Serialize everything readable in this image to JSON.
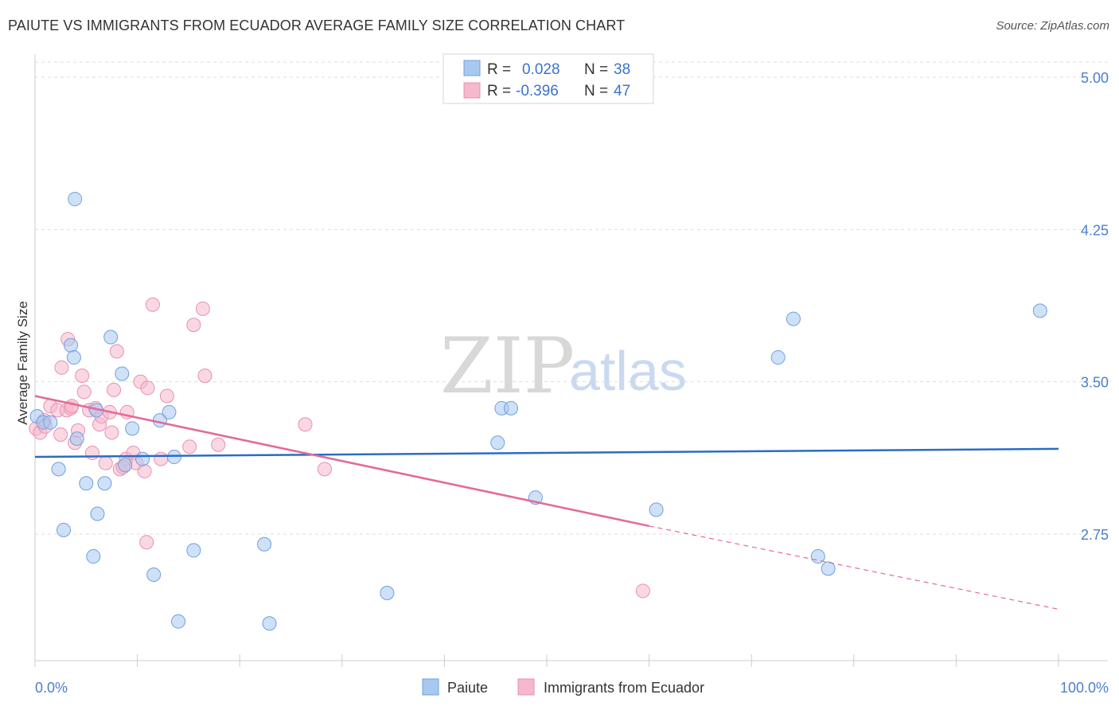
{
  "title": "PAIUTE VS IMMIGRANTS FROM ECUADOR AVERAGE FAMILY SIZE CORRELATION CHART",
  "source": "Source: ZipAtlas.com",
  "watermark": {
    "zip": "ZIP",
    "atlas": "atlas"
  },
  "legend_top": [
    {
      "r_label": "R =",
      "r_value": "0.028",
      "n_label": "N =",
      "n_value": "38"
    },
    {
      "r_label": "R =",
      "r_value": "-0.396",
      "n_label": "N =",
      "n_value": "47"
    }
  ],
  "colors": {
    "blue_fill": "#a8c8f0",
    "blue_stroke": "#6f9fe0",
    "blue_line": "#2b6cc4",
    "pink_fill": "#f5b8cc",
    "pink_stroke": "#e890b0",
    "pink_line": "#e26a98",
    "grid": "#dddddd",
    "tick_text": "#4a7fd0"
  },
  "chart_data": {
    "type": "scatter",
    "ylabel": "Average Family Size",
    "xlim": [
      0,
      100
    ],
    "ylim": [
      2.03,
      5.1
    ],
    "x_tick_labels": [
      "0.0%",
      "100.0%"
    ],
    "y_ticks": [
      2.75,
      3.5,
      4.25,
      5.0
    ],
    "y_tick_labels": [
      "2.75",
      "3.50",
      "4.25",
      "5.00"
    ],
    "grid": "horizontal dashed",
    "series": [
      {
        "name": "Paiute",
        "color": "#a8c8f0",
        "points": [
          [
            0.2,
            3.33
          ],
          [
            0.8,
            3.3
          ],
          [
            1.5,
            3.3
          ],
          [
            2.3,
            3.07
          ],
          [
            2.8,
            2.77
          ],
          [
            3.5,
            3.68
          ],
          [
            3.9,
            4.4
          ],
          [
            4.1,
            3.22
          ],
          [
            5.0,
            3.0
          ],
          [
            5.7,
            2.64
          ],
          [
            6.1,
            2.85
          ],
          [
            6.8,
            3.0
          ],
          [
            7.4,
            3.72
          ],
          [
            8.5,
            3.54
          ],
          [
            8.8,
            3.09
          ],
          [
            9.5,
            3.27
          ],
          [
            10.5,
            3.12
          ],
          [
            11.6,
            2.55
          ],
          [
            12.2,
            3.31
          ],
          [
            13.1,
            3.35
          ],
          [
            13.6,
            3.13
          ],
          [
            14.0,
            2.32
          ],
          [
            15.5,
            2.67
          ],
          [
            22.4,
            2.7
          ],
          [
            22.9,
            2.31
          ],
          [
            34.4,
            2.46
          ],
          [
            45.2,
            3.2
          ],
          [
            45.6,
            3.37
          ],
          [
            46.5,
            3.37
          ],
          [
            48.9,
            2.93
          ],
          [
            60.7,
            2.87
          ],
          [
            72.6,
            3.62
          ],
          [
            74.1,
            3.81
          ],
          [
            76.5,
            2.64
          ],
          [
            77.5,
            2.58
          ],
          [
            98.2,
            3.85
          ],
          [
            6.0,
            3.36
          ],
          [
            3.8,
            3.62
          ]
        ]
      },
      {
        "name": "Immigrants from Ecuador",
        "color": "#f5b8cc",
        "points": [
          [
            0.1,
            3.27
          ],
          [
            0.5,
            3.25
          ],
          [
            0.9,
            3.31
          ],
          [
            1.5,
            3.38
          ],
          [
            2.2,
            3.36
          ],
          [
            2.5,
            3.24
          ],
          [
            2.6,
            3.57
          ],
          [
            3.1,
            3.36
          ],
          [
            3.2,
            3.71
          ],
          [
            3.5,
            3.37
          ],
          [
            3.9,
            3.2
          ],
          [
            4.2,
            3.26
          ],
          [
            4.6,
            3.53
          ],
          [
            4.8,
            3.45
          ],
          [
            5.3,
            3.36
          ],
          [
            5.6,
            3.15
          ],
          [
            5.9,
            3.37
          ],
          [
            6.3,
            3.29
          ],
          [
            6.5,
            3.33
          ],
          [
            6.9,
            3.1
          ],
          [
            7.3,
            3.35
          ],
          [
            7.5,
            3.25
          ],
          [
            7.7,
            3.46
          ],
          [
            8.0,
            3.65
          ],
          [
            8.3,
            3.07
          ],
          [
            8.9,
            3.12
          ],
          [
            9.0,
            3.35
          ],
          [
            9.6,
            3.15
          ],
          [
            9.9,
            3.1
          ],
          [
            10.3,
            3.5
          ],
          [
            10.7,
            3.06
          ],
          [
            10.9,
            2.71
          ],
          [
            11.0,
            3.47
          ],
          [
            11.5,
            3.88
          ],
          [
            12.3,
            3.12
          ],
          [
            12.9,
            3.43
          ],
          [
            15.1,
            3.18
          ],
          [
            15.5,
            3.78
          ],
          [
            16.4,
            3.86
          ],
          [
            16.6,
            3.53
          ],
          [
            17.9,
            3.19
          ],
          [
            26.4,
            3.29
          ],
          [
            28.3,
            3.07
          ],
          [
            59.4,
            2.47
          ],
          [
            1.0,
            3.28
          ],
          [
            3.6,
            3.38
          ],
          [
            8.6,
            3.08
          ]
        ]
      }
    ],
    "trendlines": [
      {
        "series": "Paiute",
        "x": [
          0,
          100
        ],
        "y": [
          3.13,
          3.17
        ]
      },
      {
        "series": "Immigrants from Ecuador",
        "x": [
          0,
          60
        ],
        "y": [
          3.43,
          2.79
        ],
        "dashed_extension_x": [
          60,
          100
        ],
        "dashed_extension_y": [
          2.79,
          2.38
        ]
      }
    ]
  }
}
